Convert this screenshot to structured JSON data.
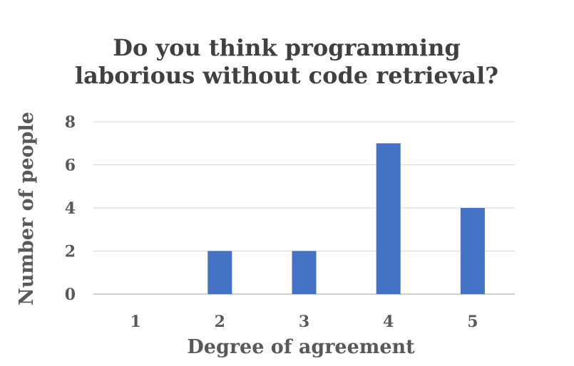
{
  "chart_data": {
    "type": "bar",
    "title": [
      "Do you think programming",
      "laborious without code retrieval?"
    ],
    "xlabel": "Degree of agreement",
    "ylabel": "Number of people",
    "categories": [
      "1",
      "2",
      "3",
      "4",
      "5"
    ],
    "values": [
      0,
      2,
      2,
      7,
      4
    ],
    "ylim": [
      0,
      8
    ],
    "yticks": [
      "0",
      "2",
      "4",
      "6",
      "8"
    ],
    "grid": true,
    "legend": "none",
    "bar_color": "#4472C4"
  }
}
